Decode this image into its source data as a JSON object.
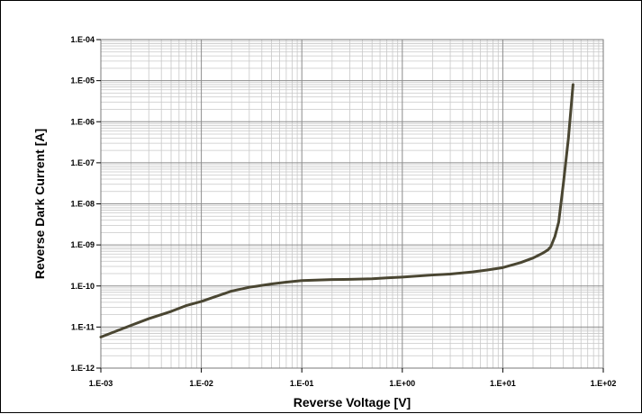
{
  "chart_data": {
    "type": "line",
    "title": "",
    "xlabel": "Reverse Voltage [V]",
    "ylabel": "Reverse Dark Current [A]",
    "x_scale": "log",
    "y_scale": "log",
    "xlim": [
      0.001,
      100
    ],
    "ylim": [
      1e-12,
      0.0001
    ],
    "grid": true,
    "legend": "none",
    "line_color": "#4a4632",
    "x_tick_labels": [
      "1.E-03",
      "1.E-02",
      "1.E-01",
      "1.E+00",
      "1.E+01",
      "1.E+02"
    ],
    "y_tick_labels": [
      "1.E-12",
      "1.E-11",
      "1.E-10",
      "1.E-09",
      "1.E-08",
      "1.E-07",
      "1.E-06",
      "1.E-05",
      "1.E-04"
    ],
    "series": [
      {
        "x": [
          0.001,
          0.002,
          0.003,
          0.005,
          0.007,
          0.01,
          0.02,
          0.03,
          0.05,
          0.07,
          0.1,
          0.2,
          0.3,
          0.5,
          0.7,
          1,
          2,
          3,
          5,
          7,
          10,
          15,
          20,
          25,
          28,
          30,
          33,
          36,
          40,
          45,
          50
        ],
        "y": [
          5.7e-12,
          1.1e-11,
          1.6e-11,
          2.4e-11,
          3.3e-11,
          4.2e-11,
          7.5e-11,
          9.3e-11,
          1.12e-10,
          1.24e-10,
          1.35e-10,
          1.43e-10,
          1.45e-10,
          1.5e-10,
          1.57e-10,
          1.65e-10,
          1.85e-10,
          1.95e-10,
          2.2e-10,
          2.45e-10,
          2.8e-10,
          3.7e-10,
          4.8e-10,
          6.3e-10,
          7.5e-10,
          9e-10,
          1.6e-09,
          3.6e-09,
          3e-08,
          4e-07,
          8e-06
        ]
      }
    ]
  }
}
